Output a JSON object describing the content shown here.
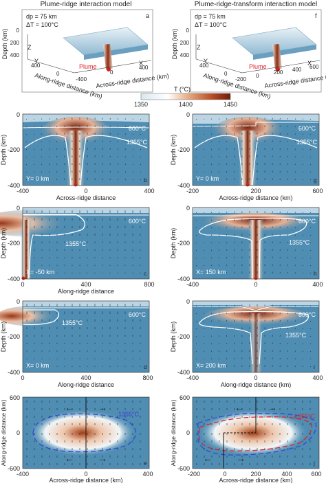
{
  "top": {
    "left_title": "Plume-ridge interaction model",
    "right_title": "Plume-ridge-transform interaction model",
    "params_dp": "dp = 75 km",
    "params_dt": "ΔT = 100°C",
    "panel_a": "a",
    "panel_f": "f",
    "depth_label": "Depth (km)",
    "along_label": "Along-ridge distance (km)",
    "across_label": "Across-ridge distance (km)",
    "plume": "Plume",
    "axis_z": "Z",
    "axis_y": "Y",
    "axis_x": "X",
    "a_depth_ticks": [
      "0",
      "200",
      "400"
    ],
    "a_y_ticks": [
      "400",
      "0"
    ],
    "a_x_ticks": [
      "-400",
      "0",
      "400"
    ],
    "f_depth_ticks": [
      "0",
      "200",
      "400"
    ],
    "f_y_ticks": [
      "400",
      "0"
    ],
    "f_x_ticks": [
      "-200",
      "0",
      "200",
      "400",
      "600"
    ]
  },
  "colorbar": {
    "label": "T (°C)",
    "ticks": [
      "1350",
      "1400",
      "1450"
    ],
    "colors": [
      "#d7e8f1",
      "#ffffff",
      "#e3a47a",
      "#b84a22",
      "#6e1d0a"
    ]
  },
  "panels": {
    "b": {
      "letter": "b",
      "loc": "Y= 0 km",
      "iso_cold": "600°C",
      "iso_hot": "1355°C",
      "ylabel": "Depth (km)",
      "xlabel": "Across-ridge distance",
      "yticks": [
        "0",
        "-200",
        "-400"
      ],
      "xticks": [
        "-400",
        "0",
        "400"
      ]
    },
    "g": {
      "letter": "g",
      "loc": "Y= 0 km",
      "iso_cold": "600°C",
      "iso_hot": "1355°C",
      "ylabel": "Depth (km)",
      "xlabel": "Across-ridge distance (km)",
      "yticks": [
        "0",
        "-200",
        "-400"
      ],
      "xticks": [
        "-200",
        "200",
        "600"
      ]
    },
    "c": {
      "letter": "c",
      "loc": "X= -50 km",
      "iso_cold": "600°C",
      "iso_hot": "1355°C",
      "ylabel": "Depth (km)",
      "xlabel": "Along-ridge distance",
      "yticks": [
        "0",
        "-200",
        "-400"
      ],
      "xticks": [
        "0",
        "400",
        "800"
      ]
    },
    "h": {
      "letter": "h",
      "loc": "X= 150 km",
      "iso_cold": "600°C",
      "iso_hot": "1355°C",
      "ylabel": "Depth (km)",
      "xlabel": "",
      "yticks": [
        "0",
        "-200",
        "-400"
      ],
      "xticks": [
        "-400",
        "0",
        "400"
      ]
    },
    "d": {
      "letter": "d",
      "loc": "X= 0 km",
      "iso_cold": "600°C",
      "iso_hot": "1355°C",
      "ylabel": "Depth (km)",
      "xlabel": "Along-ridge distance",
      "yticks": [
        "0",
        "-200",
        "-400"
      ],
      "xticks": [
        "0",
        "400",
        "800"
      ]
    },
    "i": {
      "letter": "i",
      "loc": "X= 200 km",
      "iso_cold": "600°C",
      "iso_hot": "1355°C",
      "ylabel": "Depth (km)",
      "xlabel": "Along-ridge distance (km)",
      "yticks": [
        "0",
        "-200",
        "-400"
      ],
      "xticks": [
        "-400",
        "0",
        "400"
      ]
    },
    "e": {
      "letter": "e",
      "iso": "1355°C",
      "ylabel": "Along-ridge distance (km)",
      "xlabel": "Across-ridge distance (km)",
      "yticks": [
        "600",
        "0",
        "-600"
      ],
      "xticks": [
        "-400",
        "0",
        "400"
      ]
    },
    "j": {
      "letter": "j",
      "iso": "1355°C",
      "ylabel": "Along-ridge distance (km)",
      "xlabel": "Across-ridge distance (km)",
      "yticks": [
        "600",
        "0",
        "-600"
      ],
      "xticks": [
        "-200",
        "0",
        "200",
        "400",
        "600"
      ]
    }
  }
}
